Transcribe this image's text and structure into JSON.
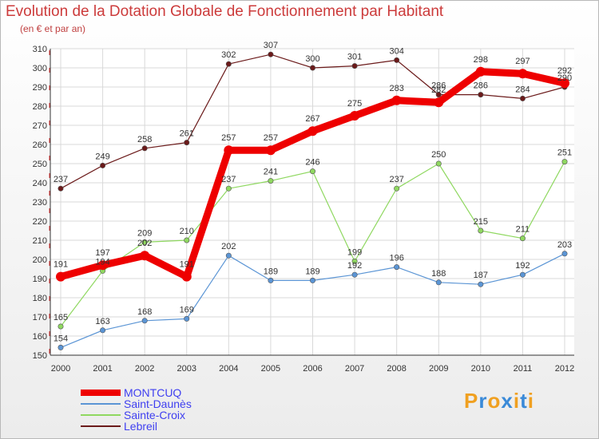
{
  "colors": {
    "MONTCUQ": "#ee0000",
    "Saint-Daunès": "#5b95d5",
    "Sainte-Croix": "#8fd860",
    "Lebreil": "#6b1a1a",
    "title": "#cc3b3b",
    "legend_text": "#3f3ff0"
  },
  "brand": {
    "letters": [
      "P",
      "r",
      "o",
      "x",
      "i",
      "t",
      "i"
    ],
    "colors": [
      "#f0a020",
      "#3a8ad8",
      "#f0a020",
      "#3a8ad8",
      "#f0a020",
      "#3a8ad8",
      "#f0a020"
    ]
  },
  "chart_data": {
    "type": "line",
    "title": "Evolution de la Dotation Globale de Fonctionnement par Habitant",
    "subtitle": "(en € et par an)",
    "xlabel": "",
    "ylabel": "",
    "categories": [
      "2000",
      "2001",
      "2002",
      "2003",
      "2004",
      "2005",
      "2006",
      "2007",
      "2008",
      "2009",
      "2010",
      "2011",
      "2012"
    ],
    "ylim": [
      150,
      310
    ],
    "yticks": [
      150,
      160,
      170,
      180,
      190,
      200,
      210,
      220,
      230,
      240,
      250,
      260,
      270,
      280,
      290,
      300,
      310
    ],
    "legend_position": "bottom-left",
    "series": [
      {
        "name": "MONTCUQ",
        "values": [
          191,
          197,
          202,
          191,
          257,
          257,
          267,
          275,
          283,
          282,
          298,
          297,
          292
        ]
      },
      {
        "name": "Saint-Daunès",
        "values": [
          154,
          163,
          168,
          169,
          202,
          189,
          189,
          192,
          196,
          188,
          187,
          192,
          203
        ]
      },
      {
        "name": "Sainte-Croix",
        "values": [
          165,
          194,
          209,
          210,
          237,
          241,
          246,
          199,
          237,
          250,
          215,
          211,
          251
        ]
      },
      {
        "name": "Lebreil",
        "values": [
          237,
          249,
          258,
          261,
          302,
          307,
          300,
          301,
          304,
          286,
          286,
          284,
          290
        ]
      }
    ]
  }
}
